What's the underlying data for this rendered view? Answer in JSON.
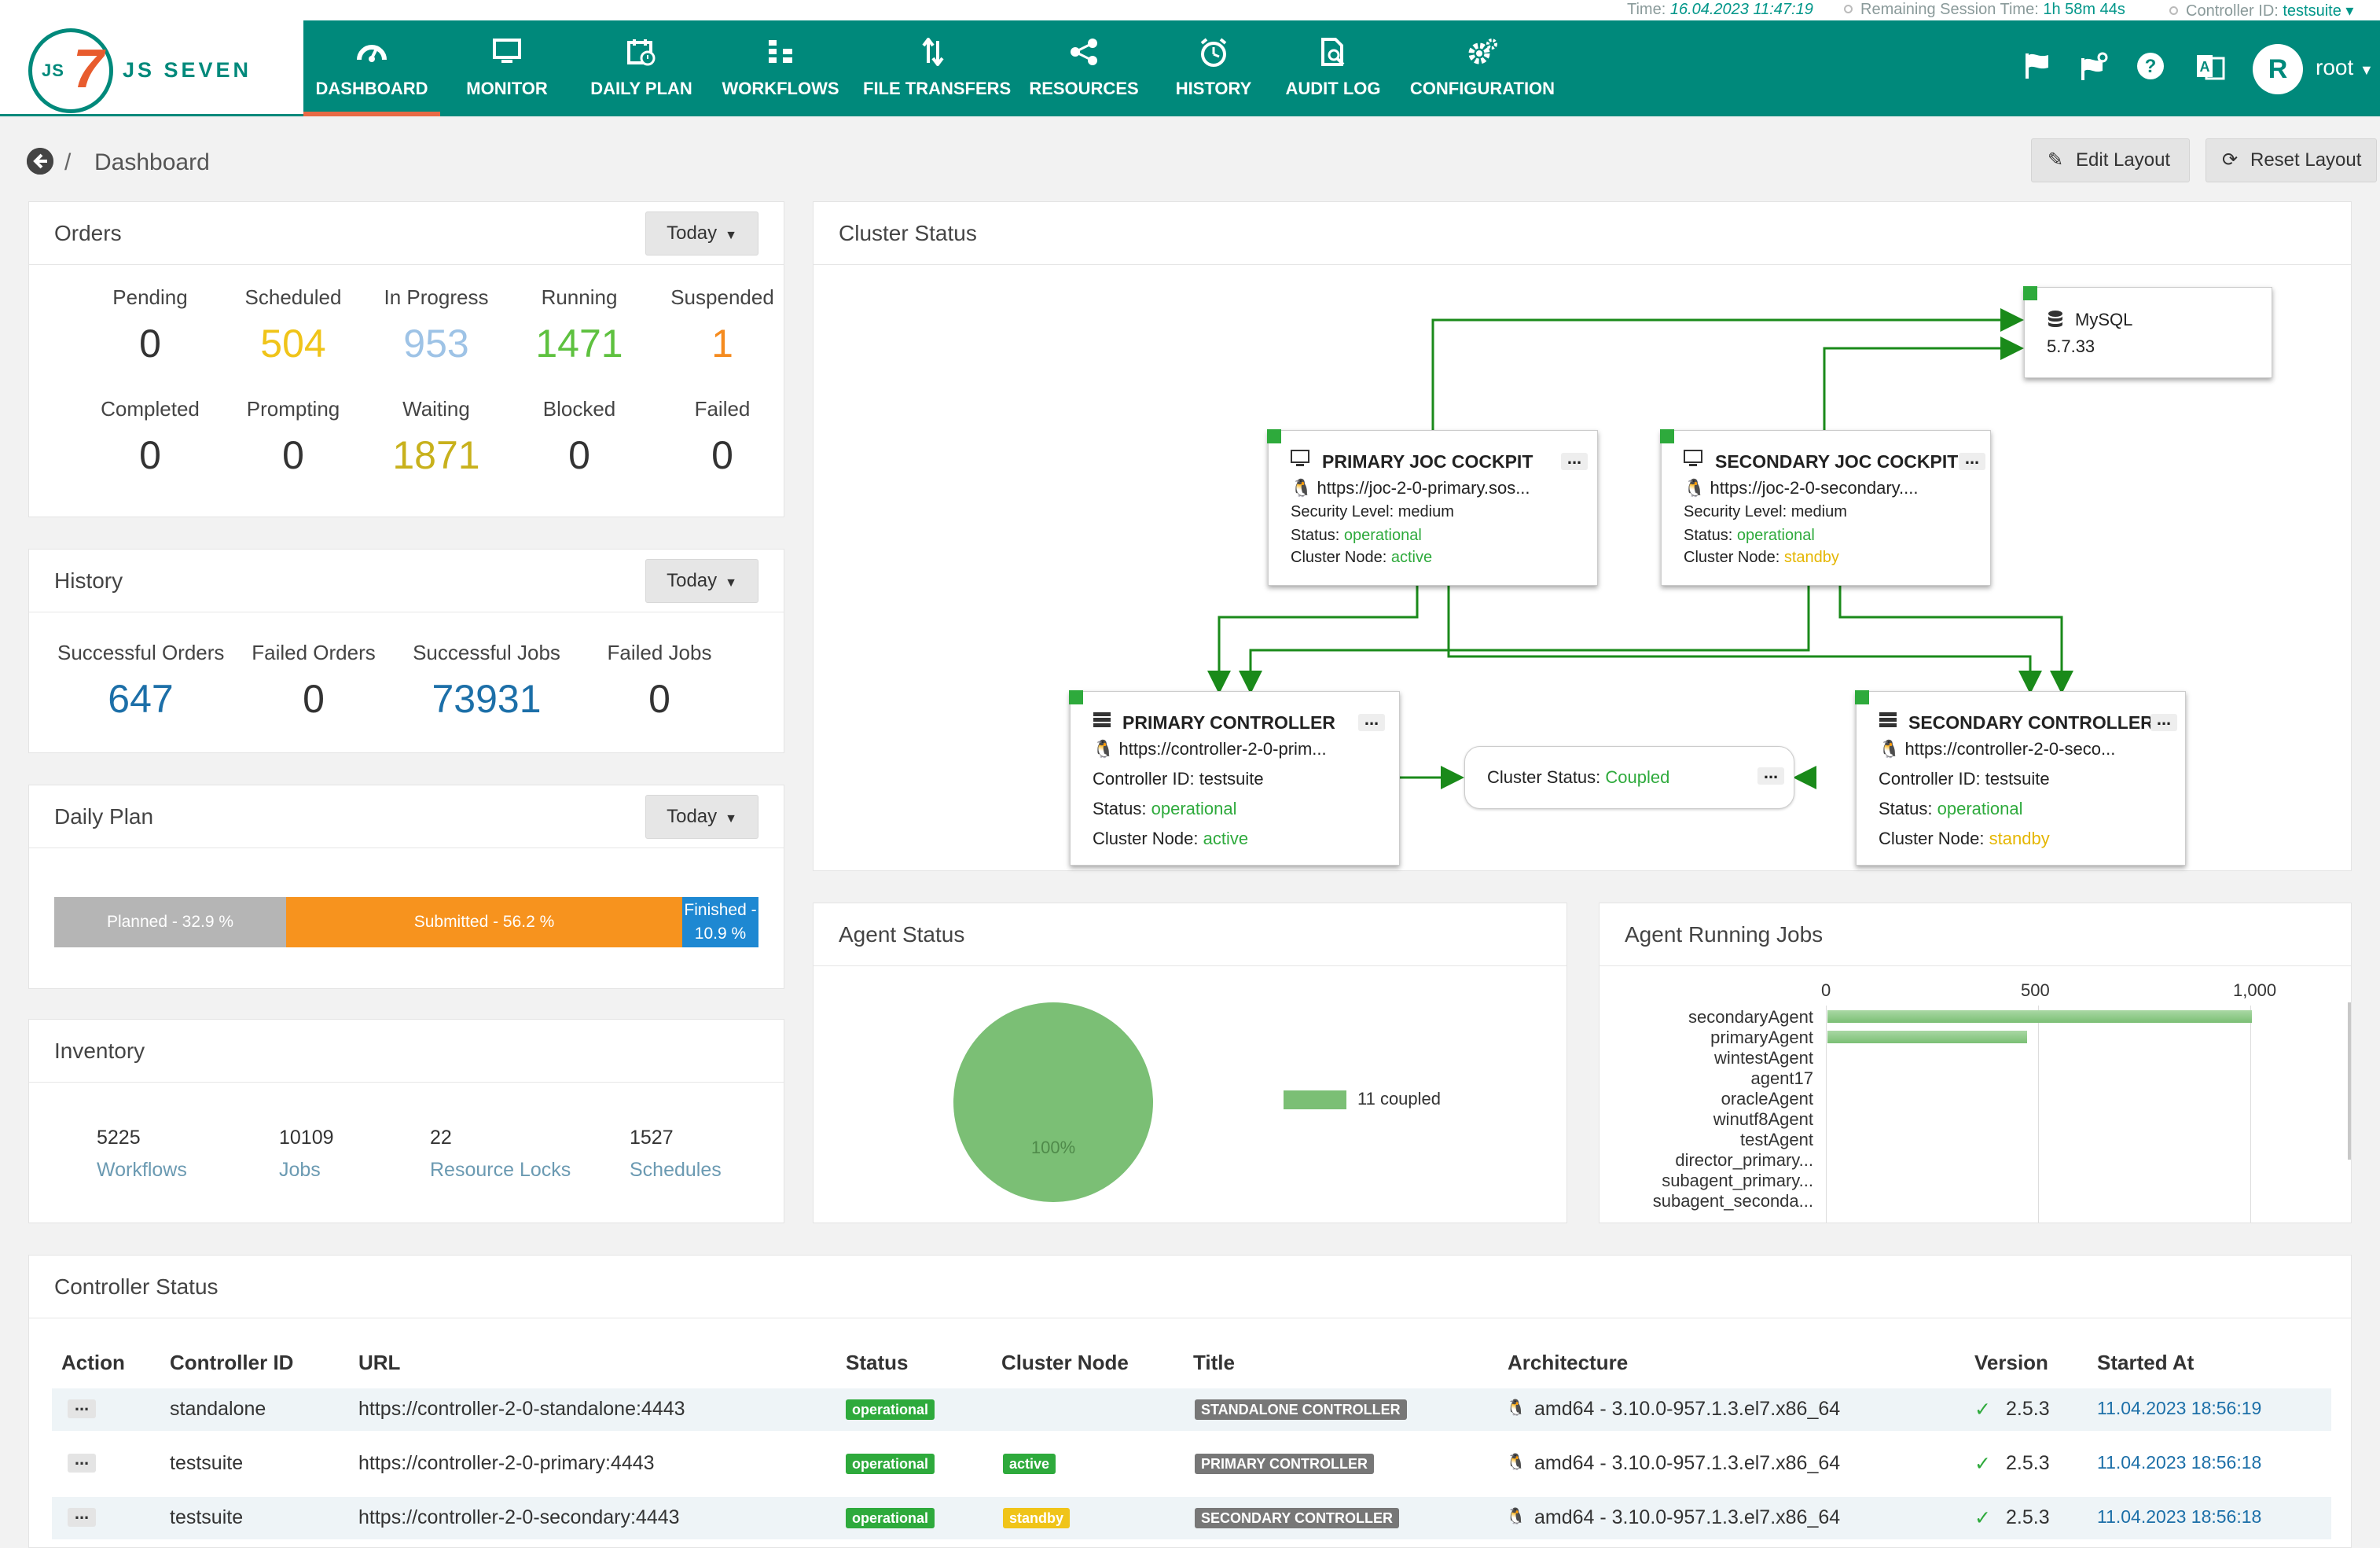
{
  "info_bar": {
    "time_label": "Time:",
    "time_value": "16.04.2023 11:47:19",
    "session_label": "Remaining Session Time:",
    "session_value": "1h 58m 44s",
    "controller_label": "Controller ID:",
    "controller_value": "testsuite"
  },
  "logo": {
    "js": "JS",
    "seven": "7",
    "text": "JS SEVEN"
  },
  "nav": [
    {
      "label": "DASHBOARD",
      "icon": "dashboard-icon"
    },
    {
      "label": "MONITOR",
      "icon": "monitor-icon"
    },
    {
      "label": "DAILY PLAN",
      "icon": "calendar-icon"
    },
    {
      "label": "WORKFLOWS",
      "icon": "workflow-icon"
    },
    {
      "label": "FILE TRANSFERS",
      "icon": "transfer-icon"
    },
    {
      "label": "RESOURCES",
      "icon": "share-icon"
    },
    {
      "label": "HISTORY",
      "icon": "clock-icon"
    },
    {
      "label": "AUDIT LOG",
      "icon": "audit-log-icon"
    },
    {
      "label": "CONFIGURATION",
      "icon": "gears-icon"
    }
  ],
  "active_nav": "DASHBOARD",
  "user": {
    "initial": "R",
    "name": "root"
  },
  "breadcrumb": {
    "separator": "/",
    "title": "Dashboard"
  },
  "buttons": {
    "edit_layout": "Edit Layout",
    "reset_layout": "Reset Layout"
  },
  "orders": {
    "title": "Orders",
    "filter": "Today",
    "stats": [
      {
        "label": "Pending",
        "value": "0",
        "color": "#333333"
      },
      {
        "label": "Scheduled",
        "value": "504",
        "color": "#f0c419"
      },
      {
        "label": "In Progress",
        "value": "953",
        "color": "#9ec3e6"
      },
      {
        "label": "Running",
        "value": "1471",
        "color": "#5ec13f"
      },
      {
        "label": "Suspended",
        "value": "1",
        "color": "#f58b1f"
      },
      {
        "label": "Completed",
        "value": "0",
        "color": "#333333"
      },
      {
        "label": "Prompting",
        "value": "0",
        "color": "#333333"
      },
      {
        "label": "Waiting",
        "value": "1871",
        "color": "#c8b11c"
      },
      {
        "label": "Blocked",
        "value": "0",
        "color": "#333333"
      },
      {
        "label": "Failed",
        "value": "0",
        "color": "#333333"
      }
    ]
  },
  "history": {
    "title": "History",
    "filter": "Today",
    "stats": [
      {
        "label": "Successful Orders",
        "value": "647",
        "color": "#1c6fa8"
      },
      {
        "label": "Failed Orders",
        "value": "0",
        "color": "#333333"
      },
      {
        "label": "Successful Jobs",
        "value": "73931",
        "color": "#1c6fa8"
      },
      {
        "label": "Failed Jobs",
        "value": "0",
        "color": "#333333"
      }
    ]
  },
  "daily_plan": {
    "title": "Daily Plan",
    "filter": "Today",
    "segments": [
      {
        "label": "Planned - 32.9 %",
        "percent": 32.9,
        "color": "#b5b5b5"
      },
      {
        "label": "Submitted - 56.2 %",
        "percent": 56.2,
        "color": "#f7931e"
      },
      {
        "label": "Finished - 10.9 %",
        "percent": 10.9,
        "color": "#1e88d2"
      }
    ]
  },
  "inventory": {
    "title": "Inventory",
    "items": [
      {
        "value": "5225",
        "label": "Workflows"
      },
      {
        "value": "10109",
        "label": "Jobs"
      },
      {
        "value": "22",
        "label": "Resource Locks"
      },
      {
        "value": "1527",
        "label": "Schedules"
      }
    ]
  },
  "cluster": {
    "title": "Cluster Status",
    "db": {
      "name": "MySQL",
      "version": "5.7.33"
    },
    "primary_joc": {
      "title": "PRIMARY JOC COCKPIT",
      "url": "https://joc-2-0-primary.sos...",
      "security_label": "Security Level:",
      "security": "medium",
      "status_label": "Status:",
      "status": "operational",
      "node_label": "Cluster Node:",
      "node": "active"
    },
    "secondary_joc": {
      "title": "SECONDARY JOC COCKPIT",
      "url": "https://joc-2-0-secondary....",
      "security_label": "Security Level:",
      "security": "medium",
      "status_label": "Status:",
      "status": "operational",
      "node_label": "Cluster Node:",
      "node": "standby"
    },
    "primary_controller": {
      "title": "PRIMARY CONTROLLER",
      "url": "https://controller-2-0-prim...",
      "id_label": "Controller ID:",
      "id": "testsuite",
      "status_label": "Status:",
      "status": "operational",
      "node_label": "Cluster Node:",
      "node": "active"
    },
    "secondary_controller": {
      "title": "SECONDARY CONTROLLER",
      "url": "https://controller-2-0-seco...",
      "id_label": "Controller ID:",
      "id": "testsuite",
      "status_label": "Status:",
      "status": "operational",
      "node_label": "Cluster Node:",
      "node": "standby"
    },
    "coupling": {
      "label": "Cluster Status:",
      "value": "Coupled"
    }
  },
  "agent_status": {
    "title": "Agent Status",
    "pie_label": "100%",
    "legend": "11 coupled",
    "color": "#7bbf75"
  },
  "agent_jobs": {
    "title": "Agent Running Jobs"
  },
  "chart_data": {
    "type": "bar",
    "orientation": "horizontal",
    "title": "Agent Running Jobs",
    "categories": [
      "secondaryAgent",
      "primaryAgent",
      "wintestAgent",
      "agent17",
      "oracleAgent",
      "winutf8Agent",
      "testAgent",
      "director_primary...",
      "subagent_primary...",
      "subagent_seconda..."
    ],
    "values": [
      1000,
      470,
      0,
      0,
      0,
      0,
      0,
      0,
      0,
      0
    ],
    "x_ticks": [
      "0",
      "500",
      "1,000"
    ],
    "xlim": [
      0,
      1100
    ],
    "color": "#7bbf75",
    "grid": true
  },
  "controller_status": {
    "title": "Controller Status",
    "columns": [
      "Action",
      "Controller ID",
      "URL",
      "Status",
      "Cluster Node",
      "Title",
      "Architecture",
      "Version",
      "Started At"
    ],
    "rows": [
      {
        "id": "standalone",
        "url": "https://controller-2-0-standalone:4443",
        "status": "operational",
        "node": "",
        "title": "STANDALONE CONTROLLER",
        "arch": "amd64 - 3.10.0-957.1.3.el7.x86_64",
        "version": "2.5.3",
        "started": "11.04.2023 18:56:19"
      },
      {
        "id": "testsuite",
        "url": "https://controller-2-0-primary:4443",
        "status": "operational",
        "node": "active",
        "title": "PRIMARY CONTROLLER",
        "arch": "amd64 - 3.10.0-957.1.3.el7.x86_64",
        "version": "2.5.3",
        "started": "11.04.2023 18:56:18"
      },
      {
        "id": "testsuite",
        "url": "https://controller-2-0-secondary:4443",
        "status": "operational",
        "node": "standby",
        "title": "SECONDARY CONTROLLER",
        "arch": "amd64 - 3.10.0-957.1.3.el7.x86_64",
        "version": "2.5.3",
        "started": "11.04.2023 18:56:18"
      }
    ]
  },
  "colors": {
    "brand": "#00897b",
    "accent": "#e86a45",
    "operational": "#2eaa3c",
    "standby": "#e5b600"
  }
}
